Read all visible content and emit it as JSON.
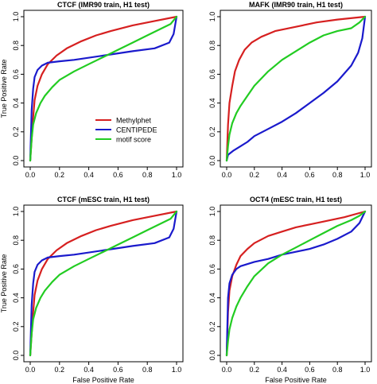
{
  "chart_data": [
    {
      "type": "line",
      "title": "CTCF (IMR90 train, H1 test)",
      "xlabel": "",
      "ylabel": "True Positive Rate",
      "xlim": [
        0,
        1
      ],
      "ylim": [
        0,
        1
      ],
      "xticks": [
        "0.0",
        "0.2",
        "0.4",
        "0.6",
        "0.8",
        "1.0"
      ],
      "yticks": [
        "0.0",
        "0.2",
        "0.4",
        "0.6",
        "0.8",
        "1.0"
      ],
      "legend": {
        "placement": "bottom-right",
        "entries": [
          "Methylphet",
          "CENTIPEDE",
          "motif score"
        ]
      },
      "series": [
        {
          "name": "Methylphet",
          "color": "#d62020",
          "points": [
            [
              0,
              0
            ],
            [
              0.01,
              0.15
            ],
            [
              0.02,
              0.3
            ],
            [
              0.03,
              0.42
            ],
            [
              0.05,
              0.52
            ],
            [
              0.08,
              0.6
            ],
            [
              0.12,
              0.67
            ],
            [
              0.18,
              0.73
            ],
            [
              0.25,
              0.78
            ],
            [
              0.35,
              0.83
            ],
            [
              0.45,
              0.87
            ],
            [
              0.55,
              0.9
            ],
            [
              0.7,
              0.94
            ],
            [
              0.85,
              0.97
            ],
            [
              1,
              1
            ]
          ]
        },
        {
          "name": "CENTIPEDE",
          "color": "#1a1acc",
          "points": [
            [
              0,
              0
            ],
            [
              0.01,
              0.35
            ],
            [
              0.02,
              0.5
            ],
            [
              0.03,
              0.58
            ],
            [
              0.05,
              0.63
            ],
            [
              0.08,
              0.66
            ],
            [
              0.12,
              0.68
            ],
            [
              0.2,
              0.69
            ],
            [
              0.3,
              0.7
            ],
            [
              0.5,
              0.73
            ],
            [
              0.7,
              0.76
            ],
            [
              0.85,
              0.78
            ],
            [
              0.95,
              0.82
            ],
            [
              0.98,
              0.88
            ],
            [
              1,
              1
            ]
          ]
        },
        {
          "name": "motif score",
          "color": "#22cc22",
          "points": [
            [
              0,
              0
            ],
            [
              0.01,
              0.15
            ],
            [
              0.02,
              0.25
            ],
            [
              0.04,
              0.33
            ],
            [
              0.07,
              0.4
            ],
            [
              0.1,
              0.45
            ],
            [
              0.15,
              0.51
            ],
            [
              0.2,
              0.56
            ],
            [
              0.3,
              0.62
            ],
            [
              0.4,
              0.67
            ],
            [
              0.5,
              0.72
            ],
            [
              0.6,
              0.77
            ],
            [
              0.7,
              0.82
            ],
            [
              0.8,
              0.87
            ],
            [
              0.9,
              0.92
            ],
            [
              0.96,
              0.95
            ],
            [
              1,
              1
            ]
          ]
        }
      ]
    },
    {
      "type": "line",
      "title": "MAFK (IMR90 train, H1 test)",
      "xlabel": "",
      "ylabel": "",
      "xlim": [
        0,
        1
      ],
      "ylim": [
        0,
        1
      ],
      "xticks": [
        "0.0",
        "0.2",
        "0.4",
        "0.6",
        "0.8",
        "1.0"
      ],
      "yticks": [
        "0.0",
        "0.2",
        "0.4",
        "0.6",
        "0.8",
        "1.0"
      ],
      "series": [
        {
          "name": "Methylphet",
          "color": "#d62020",
          "points": [
            [
              0,
              0
            ],
            [
              0.01,
              0.25
            ],
            [
              0.02,
              0.4
            ],
            [
              0.04,
              0.52
            ],
            [
              0.06,
              0.62
            ],
            [
              0.09,
              0.7
            ],
            [
              0.13,
              0.77
            ],
            [
              0.18,
              0.82
            ],
            [
              0.25,
              0.86
            ],
            [
              0.35,
              0.9
            ],
            [
              0.5,
              0.93
            ],
            [
              0.65,
              0.96
            ],
            [
              0.8,
              0.98
            ],
            [
              1,
              1
            ]
          ]
        },
        {
          "name": "CENTIPEDE",
          "color": "#1a1acc",
          "points": [
            [
              0,
              0
            ],
            [
              0.01,
              0.04
            ],
            [
              0.05,
              0.07
            ],
            [
              0.1,
              0.1
            ],
            [
              0.15,
              0.13
            ],
            [
              0.2,
              0.17
            ],
            [
              0.3,
              0.22
            ],
            [
              0.4,
              0.27
            ],
            [
              0.5,
              0.33
            ],
            [
              0.6,
              0.4
            ],
            [
              0.7,
              0.47
            ],
            [
              0.8,
              0.55
            ],
            [
              0.9,
              0.66
            ],
            [
              0.95,
              0.75
            ],
            [
              0.98,
              0.85
            ],
            [
              1,
              1
            ]
          ]
        },
        {
          "name": "motif score",
          "color": "#22cc22",
          "points": [
            [
              0,
              0
            ],
            [
              0.01,
              0.1
            ],
            [
              0.02,
              0.18
            ],
            [
              0.04,
              0.26
            ],
            [
              0.07,
              0.33
            ],
            [
              0.1,
              0.38
            ],
            [
              0.15,
              0.45
            ],
            [
              0.2,
              0.52
            ],
            [
              0.3,
              0.62
            ],
            [
              0.4,
              0.7
            ],
            [
              0.5,
              0.76
            ],
            [
              0.6,
              0.82
            ],
            [
              0.7,
              0.87
            ],
            [
              0.8,
              0.9
            ],
            [
              0.9,
              0.92
            ],
            [
              0.96,
              0.96
            ],
            [
              1,
              1
            ]
          ]
        }
      ]
    },
    {
      "type": "line",
      "title": "CTCF (mESC train, H1 test)",
      "xlabel": "False Positive Rate",
      "ylabel": "True Positive Rate",
      "xlim": [
        0,
        1
      ],
      "ylim": [
        0,
        1
      ],
      "xticks": [
        "0.0",
        "0.2",
        "0.4",
        "0.6",
        "0.8",
        "1.0"
      ],
      "yticks": [
        "0.0",
        "0.2",
        "0.4",
        "0.6",
        "0.8",
        "1.0"
      ],
      "series": [
        {
          "name": "Methylphet",
          "color": "#d62020",
          "points": [
            [
              0,
              0
            ],
            [
              0.01,
              0.15
            ],
            [
              0.02,
              0.3
            ],
            [
              0.03,
              0.42
            ],
            [
              0.05,
              0.52
            ],
            [
              0.08,
              0.6
            ],
            [
              0.12,
              0.67
            ],
            [
              0.18,
              0.73
            ],
            [
              0.25,
              0.78
            ],
            [
              0.35,
              0.83
            ],
            [
              0.45,
              0.87
            ],
            [
              0.55,
              0.9
            ],
            [
              0.7,
              0.94
            ],
            [
              0.85,
              0.97
            ],
            [
              1,
              1
            ]
          ]
        },
        {
          "name": "CENTIPEDE",
          "color": "#1a1acc",
          "points": [
            [
              0,
              0
            ],
            [
              0.01,
              0.35
            ],
            [
              0.02,
              0.5
            ],
            [
              0.03,
              0.58
            ],
            [
              0.05,
              0.63
            ],
            [
              0.08,
              0.66
            ],
            [
              0.12,
              0.68
            ],
            [
              0.2,
              0.69
            ],
            [
              0.3,
              0.7
            ],
            [
              0.5,
              0.73
            ],
            [
              0.7,
              0.76
            ],
            [
              0.85,
              0.78
            ],
            [
              0.95,
              0.82
            ],
            [
              0.98,
              0.88
            ],
            [
              1,
              1
            ]
          ]
        },
        {
          "name": "motif score",
          "color": "#22cc22",
          "points": [
            [
              0,
              0
            ],
            [
              0.01,
              0.15
            ],
            [
              0.02,
              0.25
            ],
            [
              0.04,
              0.33
            ],
            [
              0.07,
              0.4
            ],
            [
              0.1,
              0.45
            ],
            [
              0.15,
              0.51
            ],
            [
              0.2,
              0.56
            ],
            [
              0.3,
              0.62
            ],
            [
              0.4,
              0.67
            ],
            [
              0.5,
              0.72
            ],
            [
              0.6,
              0.77
            ],
            [
              0.7,
              0.82
            ],
            [
              0.8,
              0.87
            ],
            [
              0.9,
              0.92
            ],
            [
              0.96,
              0.95
            ],
            [
              1,
              1
            ]
          ]
        }
      ]
    },
    {
      "type": "line",
      "title": "OCT4 (mESC train, H1 test)",
      "xlabel": "False Positive Rate",
      "ylabel": "",
      "xlim": [
        0,
        1
      ],
      "ylim": [
        0,
        1
      ],
      "xticks": [
        "0.0",
        "0.2",
        "0.4",
        "0.6",
        "0.8",
        "1.0"
      ],
      "yticks": [
        "0.0",
        "0.2",
        "0.4",
        "0.6",
        "0.8",
        "1.0"
      ],
      "series": [
        {
          "name": "Methylphet",
          "color": "#d62020",
          "points": [
            [
              0,
              0
            ],
            [
              0.01,
              0.3
            ],
            [
              0.02,
              0.45
            ],
            [
              0.04,
              0.55
            ],
            [
              0.07,
              0.63
            ],
            [
              0.1,
              0.69
            ],
            [
              0.15,
              0.74
            ],
            [
              0.2,
              0.78
            ],
            [
              0.3,
              0.83
            ],
            [
              0.4,
              0.86
            ],
            [
              0.5,
              0.89
            ],
            [
              0.6,
              0.91
            ],
            [
              0.7,
              0.93
            ],
            [
              0.85,
              0.96
            ],
            [
              1,
              1
            ]
          ]
        },
        {
          "name": "CENTIPEDE",
          "color": "#1a1acc",
          "points": [
            [
              0,
              0
            ],
            [
              0.01,
              0.4
            ],
            [
              0.02,
              0.5
            ],
            [
              0.04,
              0.56
            ],
            [
              0.07,
              0.6
            ],
            [
              0.1,
              0.62
            ],
            [
              0.2,
              0.65
            ],
            [
              0.3,
              0.67
            ],
            [
              0.4,
              0.7
            ],
            [
              0.5,
              0.72
            ],
            [
              0.6,
              0.74
            ],
            [
              0.7,
              0.77
            ],
            [
              0.8,
              0.81
            ],
            [
              0.9,
              0.86
            ],
            [
              0.96,
              0.92
            ],
            [
              1,
              1
            ]
          ]
        },
        {
          "name": "motif score",
          "color": "#22cc22",
          "points": [
            [
              0,
              0
            ],
            [
              0.01,
              0.1
            ],
            [
              0.02,
              0.18
            ],
            [
              0.04,
              0.26
            ],
            [
              0.07,
              0.34
            ],
            [
              0.1,
              0.4
            ],
            [
              0.15,
              0.48
            ],
            [
              0.2,
              0.55
            ],
            [
              0.3,
              0.64
            ],
            [
              0.4,
              0.7
            ],
            [
              0.5,
              0.75
            ],
            [
              0.6,
              0.8
            ],
            [
              0.7,
              0.85
            ],
            [
              0.8,
              0.9
            ],
            [
              0.9,
              0.94
            ],
            [
              0.96,
              0.97
            ],
            [
              1,
              1
            ]
          ]
        }
      ]
    }
  ]
}
